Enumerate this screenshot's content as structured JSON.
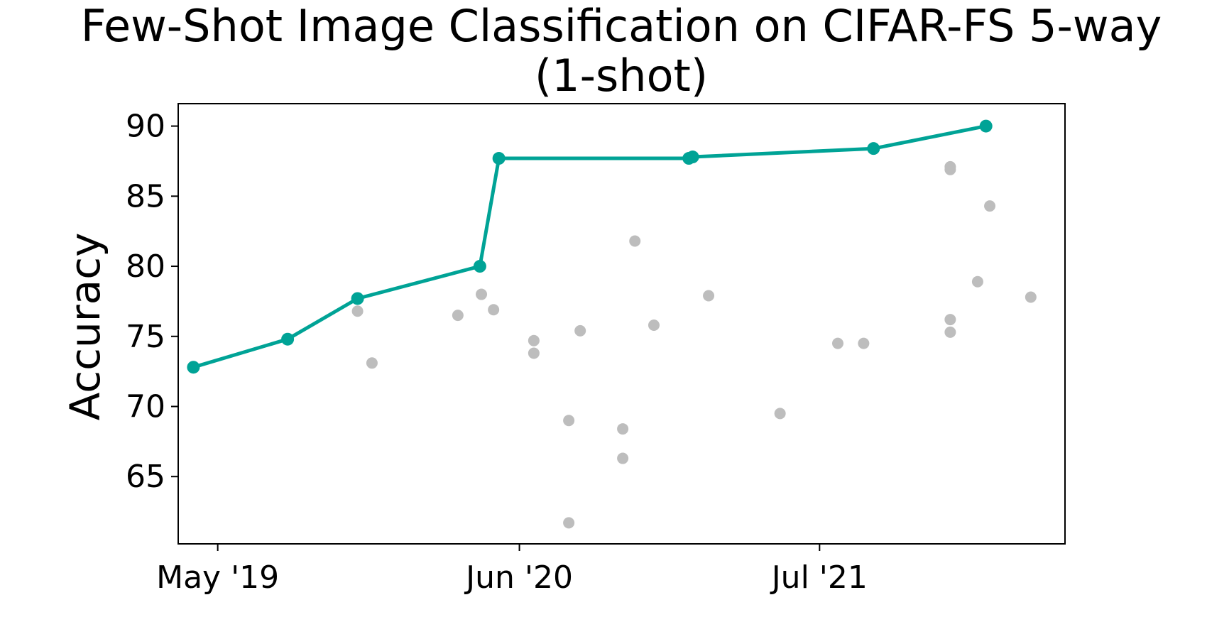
{
  "chart_data": {
    "type": "scatter",
    "title": "Few-Shot Image Classification on CIFAR-FS 5-way",
    "subtitle": "(1-shot)",
    "xlabel": "",
    "ylabel": "Accuracy",
    "x_tick_labels": [
      {
        "date": "2019-05-01",
        "label": "May '19"
      },
      {
        "date": "2020-06-01",
        "label": "Jun '20"
      },
      {
        "date": "2021-07-01",
        "label": "Jul '21"
      }
    ],
    "y_ticks": [
      65,
      70,
      75,
      80,
      85,
      90
    ],
    "xlim": [
      "2019-03-10",
      "2022-05-20"
    ],
    "ylim": [
      60.2,
      91.6
    ],
    "grid": false,
    "colors": {
      "best": "#00a396",
      "other": "#bdbdbd",
      "axis": "#000000"
    },
    "series": [
      {
        "role": "best",
        "points": [
          {
            "x": "2019-03-30",
            "y": 72.8
          },
          {
            "x": "2019-08-01",
            "y": 74.8
          },
          {
            "x": "2019-11-01",
            "y": 77.7
          },
          {
            "x": "2020-04-10",
            "y": 80.0
          },
          {
            "x": "2020-05-05",
            "y": 87.7
          },
          {
            "x": "2021-01-10",
            "y": 87.7
          },
          {
            "x": "2021-01-15",
            "y": 87.8
          },
          {
            "x": "2021-09-10",
            "y": 88.4
          },
          {
            "x": "2022-02-05",
            "y": 90.0
          }
        ]
      },
      {
        "role": "other",
        "points": [
          {
            "x": "2019-11-01",
            "y": 76.8
          },
          {
            "x": "2019-11-20",
            "y": 73.1
          },
          {
            "x": "2020-03-12",
            "y": 76.5
          },
          {
            "x": "2020-04-12",
            "y": 78.0
          },
          {
            "x": "2020-04-28",
            "y": 76.9
          },
          {
            "x": "2020-06-20",
            "y": 74.7
          },
          {
            "x": "2020-06-20",
            "y": 73.8
          },
          {
            "x": "2020-08-05",
            "y": 69.0
          },
          {
            "x": "2020-08-05",
            "y": 61.7
          },
          {
            "x": "2020-08-20",
            "y": 75.4
          },
          {
            "x": "2020-10-15",
            "y": 68.4
          },
          {
            "x": "2020-10-15",
            "y": 66.3
          },
          {
            "x": "2020-10-31",
            "y": 81.8
          },
          {
            "x": "2020-11-25",
            "y": 75.8
          },
          {
            "x": "2021-02-05",
            "y": 77.9
          },
          {
            "x": "2021-05-10",
            "y": 69.5
          },
          {
            "x": "2021-07-25",
            "y": 74.5
          },
          {
            "x": "2021-08-28",
            "y": 74.5
          },
          {
            "x": "2021-12-20",
            "y": 87.1
          },
          {
            "x": "2021-12-20",
            "y": 86.9
          },
          {
            "x": "2021-12-20",
            "y": 76.2
          },
          {
            "x": "2021-12-20",
            "y": 75.3
          },
          {
            "x": "2022-01-25",
            "y": 78.9
          },
          {
            "x": "2022-02-10",
            "y": 84.3
          },
          {
            "x": "2022-04-05",
            "y": 77.8
          }
        ]
      }
    ]
  }
}
